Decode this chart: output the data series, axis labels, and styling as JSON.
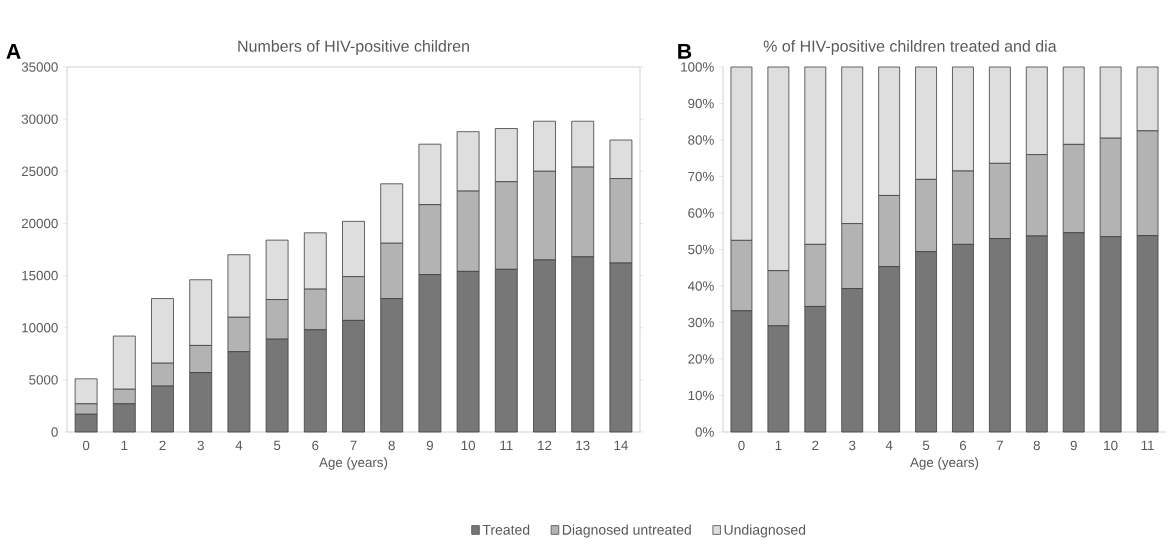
{
  "chart_data": [
    {
      "type": "bar",
      "stacked": true,
      "title": "Numbers of HIV-positive children",
      "xlabel": "Age (years)",
      "annotations": [
        "A"
      ],
      "categories": [
        "0",
        "1",
        "2",
        "3",
        "4",
        "5",
        "6",
        "7",
        "8",
        "9",
        "10",
        "11",
        "12",
        "13",
        "14"
      ],
      "ylim": [
        0,
        35000
      ],
      "yticks": [
        0,
        5000,
        10000,
        15000,
        20000,
        25000,
        30000,
        35000
      ],
      "legend": "bottom",
      "series": [
        {
          "name": "Treated",
          "color": "#777777",
          "values": [
            1700,
            2700,
            4400,
            5700,
            7700,
            8900,
            9800,
            10700,
            12800,
            15100,
            15400,
            15600,
            16500,
            16800,
            16200
          ]
        },
        {
          "name": "Diagnosed untreated",
          "color": "#b3b3b3",
          "values": [
            1000,
            1400,
            2200,
            2600,
            3300,
            3800,
            3900,
            4200,
            5300,
            6700,
            7700,
            8400,
            8500,
            8600,
            8100
          ]
        },
        {
          "name": "Undiagnosed",
          "color": "#dedede",
          "values": [
            2400,
            5100,
            6200,
            6300,
            6000,
            5700,
            5400,
            5300,
            5700,
            5800,
            5700,
            5100,
            4800,
            4400,
            3700
          ]
        }
      ]
    },
    {
      "type": "bar",
      "stacked": true,
      "title": "% of HIV-positive children treated and dia",
      "xlabel": "Age (years)",
      "annotations": [
        "B"
      ],
      "categories": [
        "0",
        "1",
        "2",
        "3",
        "4",
        "5",
        "6",
        "7",
        "8",
        "9",
        "10",
        "11"
      ],
      "ylim": [
        0,
        100
      ],
      "yticks": [
        {
          "value": 0,
          "label": "0%"
        },
        {
          "value": 10,
          "label": "10%"
        },
        {
          "value": 20,
          "label": "20%"
        },
        {
          "value": 30,
          "label": "30%"
        },
        {
          "value": 40,
          "label": "40%"
        },
        {
          "value": 50,
          "label": "50%"
        },
        {
          "value": 60,
          "label": "60%"
        },
        {
          "value": 70,
          "label": "70%"
        },
        {
          "value": 80,
          "label": "80%"
        },
        {
          "value": 90,
          "label": "90%"
        },
        {
          "value": 100,
          "label": "100%"
        }
      ],
      "series": [
        {
          "color": "#777777",
          "values": [
            33.2,
            29.1,
            34.4,
            39.3,
            45.3,
            49.4,
            51.4,
            53.0,
            53.7,
            54.6,
            53.5,
            53.8
          ]
        },
        {
          "color": "#b3b3b3",
          "values": [
            19.3,
            15.1,
            17.0,
            17.8,
            19.5,
            19.8,
            20.1,
            20.6,
            22.3,
            24.2,
            27.0,
            28.7
          ]
        },
        {
          "color": "#dedede",
          "values": [
            47.5,
            55.8,
            48.6,
            42.9,
            35.2,
            30.8,
            28.5,
            26.4,
            24.0,
            21.2,
            19.5,
            17.5
          ]
        }
      ]
    }
  ]
}
